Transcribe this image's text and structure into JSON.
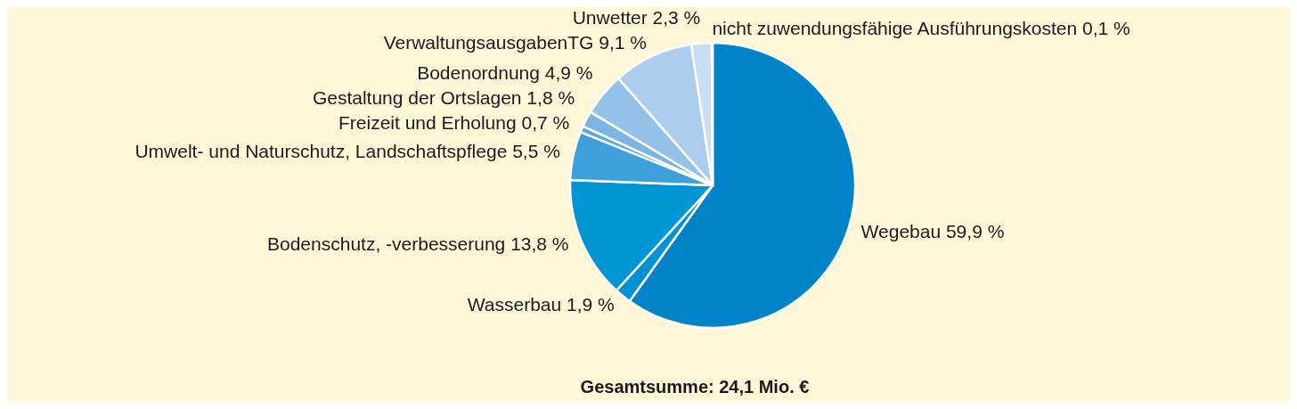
{
  "chart_data": {
    "type": "pie",
    "categories": [
      "Wegebau",
      "Wasserbau",
      "Bodenschutz, -verbesserung",
      "Umwelt- und Naturschutz, Landschaftspflege",
      "Freizeit und Erholung",
      "Gestaltung der Ortslagen",
      "Bodenordnung",
      "VerwaltungsausgabenTG",
      "Unwetter",
      "nicht zuwendungsfähige Ausführungskosten"
    ],
    "values": [
      59.9,
      1.9,
      13.8,
      5.5,
      0.7,
      1.8,
      4.9,
      9.1,
      2.3,
      0.1
    ],
    "value_labels": [
      "59,9 %",
      "1,9 %",
      "13,8 %",
      "5,5 %",
      "0,7 %",
      "1,8 %",
      "4,9 %",
      "9,1 %",
      "2,3 %",
      "0,1 %"
    ],
    "colors": [
      "#0083c9",
      "#0092d2",
      "#0096d6",
      "#3ea0da",
      "#5aa9de",
      "#7ab5e3",
      "#93c1e8",
      "#adcdee",
      "#c8def3",
      "#e2edf8"
    ],
    "annotations": [
      "Gesamtsumme: 24,1 Mio. €"
    ]
  }
}
